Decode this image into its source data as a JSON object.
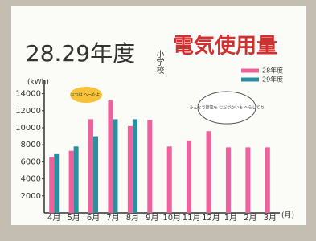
{
  "chart_data": {
    "type": "bar",
    "title": "28.29年度",
    "title_main": "電気使用量",
    "subtitle": "小学校",
    "y_label": "(kWh)",
    "x_label": "(月)",
    "categories": [
      "4月",
      "5月",
      "6月",
      "7月",
      "8月",
      "9月",
      "10月",
      "11月",
      "12月",
      "1月",
      "2月",
      "3月"
    ],
    "series": [
      {
        "name": "28年度",
        "color": "#f0609a",
        "values": [
          6600,
          7300,
          11000,
          13200,
          10200,
          10900,
          7800,
          8500,
          9600,
          7700,
          7700,
          7700
        ]
      },
      {
        "name": "29年度",
        "color": "#2a8fa0",
        "values": [
          6900,
          7800,
          9000,
          11000,
          11000,
          null,
          null,
          null,
          null,
          null,
          null,
          null
        ]
      }
    ],
    "ylim": [
      0,
      15000
    ],
    "yticks": [
      2000,
      4000,
      6000,
      8000,
      10000,
      12000,
      14000
    ],
    "annotations": [
      "なつは へったよ!",
      "みんなで節電を むだづかいを へらしてね"
    ]
  }
}
